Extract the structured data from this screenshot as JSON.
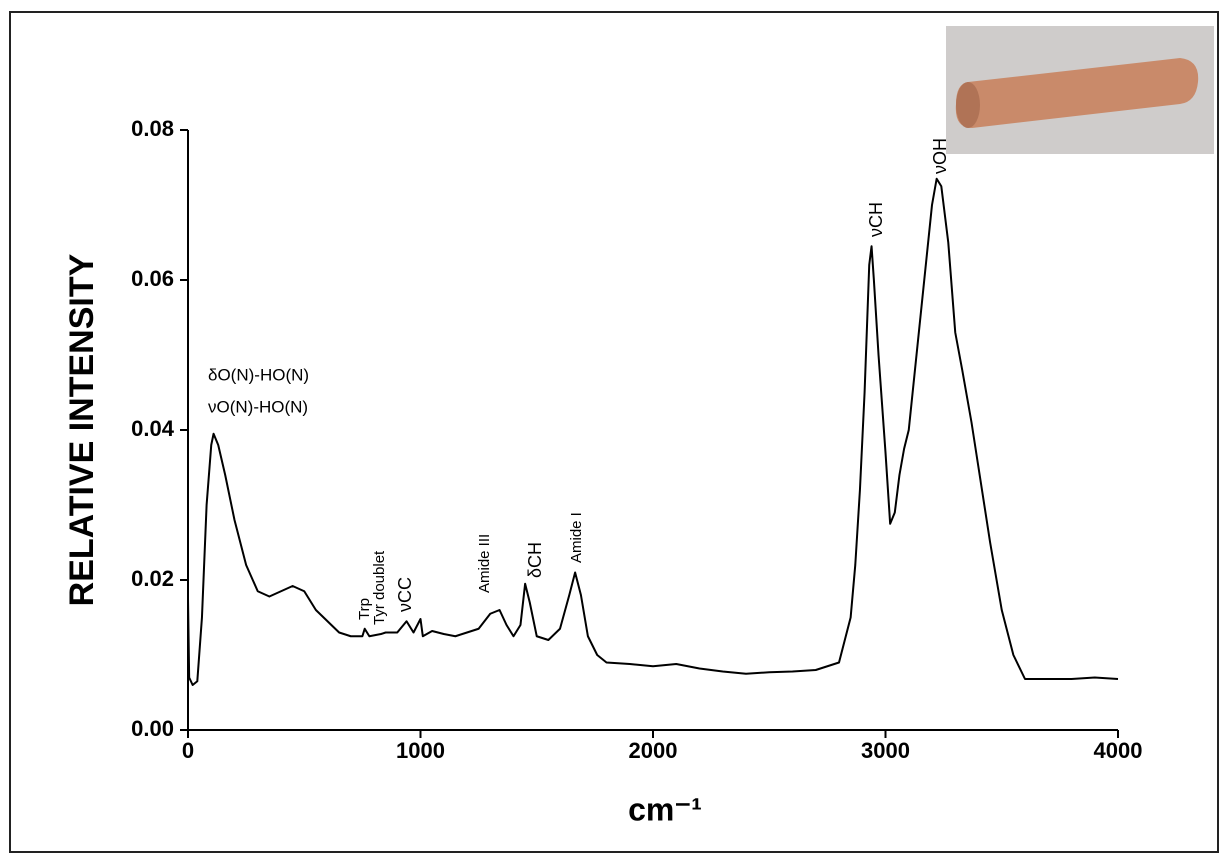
{
  "chart_data": {
    "type": "line",
    "ylabel": "RELATIVE INTENSITY",
    "xlabel": "cm⁻¹",
    "xlim": [
      0,
      4000
    ],
    "xticks": [
      0,
      1000,
      2000,
      3000,
      4000
    ],
    "ylim": [
      0,
      0.08
    ],
    "yticks": [
      {
        "value": 0,
        "label": "0.00"
      },
      0.02,
      0.04,
      0.06,
      0.08
    ],
    "color": "#000000",
    "annotations": [
      "δO(N)-HO(N)",
      "νO(N)-HO(N)",
      "Trp",
      "Tyr doublet",
      "νCC",
      "Amide III",
      "δCH",
      "Amide I",
      "νCH",
      "νOH"
    ],
    "x": [
      0,
      5,
      20,
      40,
      60,
      80,
      100,
      110,
      130,
      160,
      200,
      250,
      300,
      350,
      400,
      450,
      500,
      550,
      600,
      650,
      700,
      750,
      760,
      780,
      830,
      850,
      900,
      940,
      970,
      1000,
      1010,
      1050,
      1100,
      1150,
      1200,
      1250,
      1300,
      1340,
      1370,
      1400,
      1430,
      1450,
      1470,
      1500,
      1550,
      1600,
      1640,
      1665,
      1690,
      1720,
      1760,
      1800,
      1900,
      2000,
      2100,
      2200,
      2300,
      2400,
      2500,
      2600,
      2700,
      2800,
      2850,
      2870,
      2890,
      2910,
      2930,
      2940,
      2950,
      2970,
      3000,
      3020,
      3040,
      3060,
      3080,
      3100,
      3150,
      3200,
      3220,
      3240,
      3270,
      3300,
      3330,
      3370,
      3400,
      3450,
      3500,
      3550,
      3600,
      3700,
      3800,
      3900,
      4000
    ],
    "y": [
      0.0175,
      0.007,
      0.006,
      0.0065,
      0.015,
      0.03,
      0.038,
      0.0395,
      0.038,
      0.034,
      0.028,
      0.022,
      0.0185,
      0.0178,
      0.0185,
      0.0192,
      0.0185,
      0.016,
      0.0145,
      0.013,
      0.0125,
      0.0125,
      0.0135,
      0.0125,
      0.0128,
      0.013,
      0.013,
      0.0145,
      0.013,
      0.0148,
      0.0125,
      0.0132,
      0.0128,
      0.0125,
      0.013,
      0.0135,
      0.0155,
      0.016,
      0.014,
      0.0125,
      0.014,
      0.0195,
      0.017,
      0.0125,
      0.012,
      0.0135,
      0.018,
      0.021,
      0.018,
      0.0125,
      0.01,
      0.009,
      0.0088,
      0.0085,
      0.0088,
      0.0082,
      0.0078,
      0.0075,
      0.0077,
      0.0078,
      0.008,
      0.009,
      0.015,
      0.022,
      0.032,
      0.045,
      0.062,
      0.0645,
      0.06,
      0.05,
      0.037,
      0.0275,
      0.029,
      0.034,
      0.0375,
      0.04,
      0.055,
      0.07,
      0.0735,
      0.0725,
      0.065,
      0.053,
      0.048,
      0.041,
      0.035,
      0.025,
      0.016,
      0.01,
      0.0068,
      0.0068,
      0.0068,
      0.007,
      0.0068
    ]
  }
}
